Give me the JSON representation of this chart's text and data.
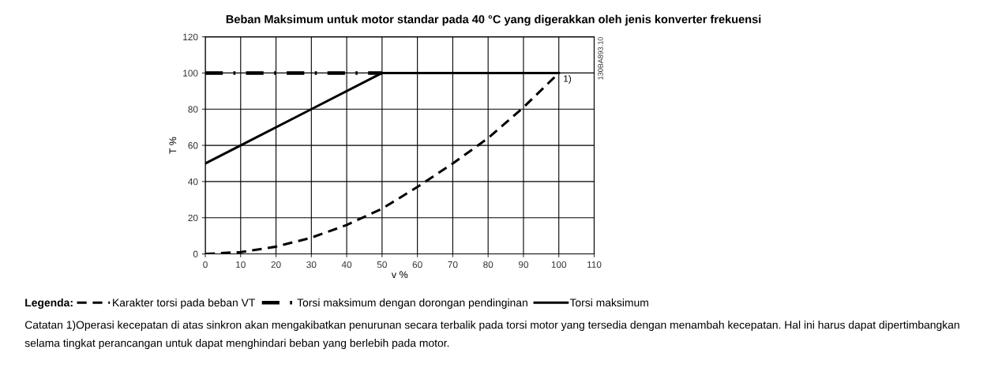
{
  "chart_data": {
    "type": "line",
    "title": "Beban Maksimum untuk motor standar pada 40 °C yang digerakkan oleh jenis konverter frekuensi",
    "xlabel": "v %",
    "ylabel": "T %",
    "legend_title": "Legenda:",
    "series": [
      {
        "name": "Karakter torsi pada beban VT",
        "color": "#000000",
        "line_style": "dashed",
        "x": [
          0,
          10,
          20,
          30,
          40,
          50,
          60,
          70,
          80,
          90,
          100
        ],
        "values": [
          0,
          1,
          4,
          9,
          16,
          25,
          37,
          50,
          64,
          81,
          100
        ]
      },
      {
        "name": "Torsi maksimum dengan dorongan pendinginan",
        "color": "#000000",
        "line_style": "dashdot",
        "x": [
          0,
          50
        ],
        "values": [
          100,
          100
        ]
      },
      {
        "name": "Torsi maksimum",
        "color": "#000000",
        "line_style": "solid",
        "x": [
          0,
          10,
          30,
          50,
          100
        ],
        "values": [
          50,
          60,
          80,
          100,
          100
        ]
      }
    ],
    "xlim": [
      0,
      110
    ],
    "xticks": [
      0,
      10,
      20,
      30,
      40,
      50,
      60,
      70,
      80,
      90,
      100,
      110
    ],
    "ylim": [
      0,
      120
    ],
    "yticks": [
      0,
      20,
      40,
      60,
      80,
      100,
      120
    ],
    "grid": true,
    "legend": "bottom",
    "marker": "none",
    "annotations": [
      {
        "text": "1)",
        "x": 100,
        "y": 100
      },
      "130BA893.10",
      "Catatan 1)Operasi kecepatan di atas sinkron akan mengakibatkan penurunan secara terbalik pada torsi motor yang tersedia dengan menambah kecepatan. Hal ini harus dapat dipertimbangkan selama tingkat perancangan untuk dapat menghindari beban yang berlebih pada motor."
    ]
  }
}
